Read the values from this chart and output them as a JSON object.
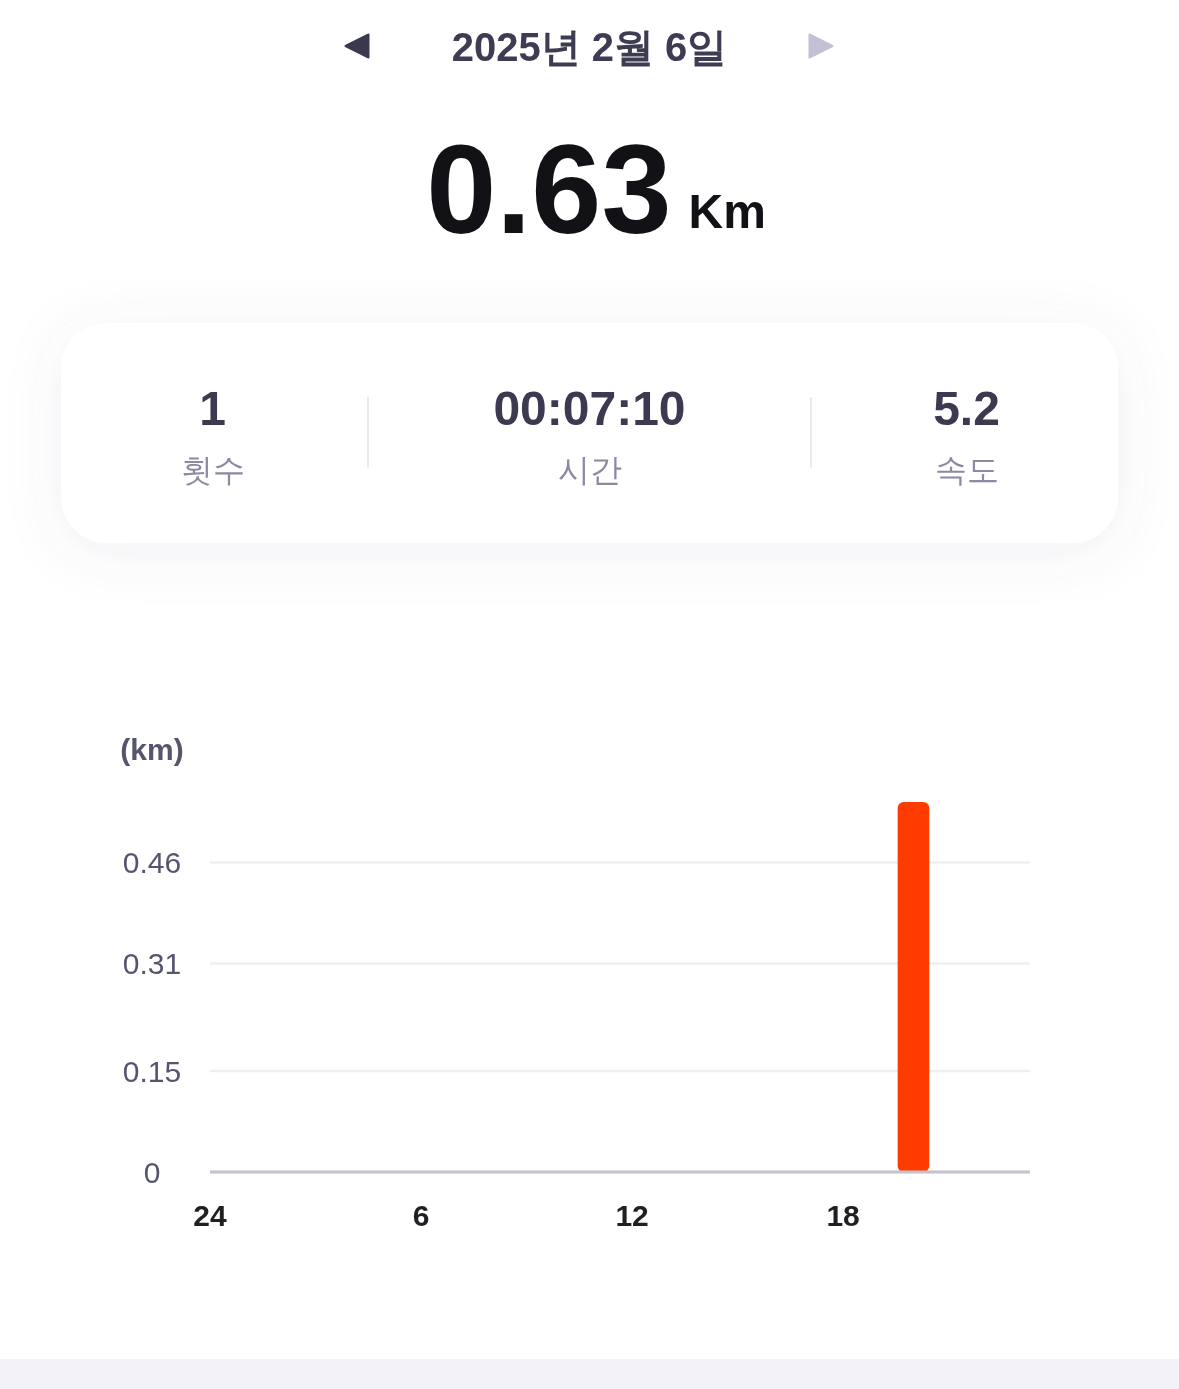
{
  "chart_data": {
    "type": "bar",
    "title": "2025년 2월 6일",
    "annotations": [
      "0.63",
      "Km",
      "1",
      "횟수",
      "00:07:10",
      "시간",
      "5.2",
      "속도"
    ],
    "ylabel": "(km)",
    "categories": [
      "24",
      null,
      null,
      null,
      null,
      null,
      "6",
      null,
      null,
      null,
      null,
      null,
      "12",
      null,
      null,
      null,
      null,
      null,
      "18",
      null,
      null,
      null,
      null,
      null
    ],
    "values": [
      null,
      null,
      null,
      null,
      null,
      null,
      null,
      null,
      null,
      null,
      null,
      null,
      null,
      null,
      null,
      null,
      null,
      null,
      null,
      null,
      0.55,
      null,
      null,
      null
    ],
    "color": "#ff3c00",
    "ylim": [
      0,
      0.55
    ],
    "yticks": [
      0,
      0.15,
      0.31,
      0.46
    ],
    "grid": "y"
  }
}
